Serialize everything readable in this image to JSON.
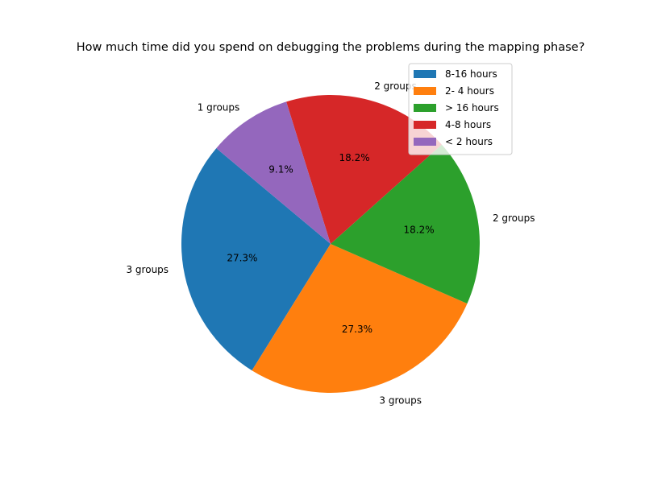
{
  "chart_data": {
    "type": "pie",
    "title": "How much time did you spend on debugging the problems during the mapping phase?",
    "slices": [
      {
        "legend": "8-16 hours",
        "label": "3 groups",
        "value": 3,
        "pct": "27.3%",
        "color": "#1f77b4"
      },
      {
        "legend": "2- 4 hours",
        "label": "3 groups",
        "value": 3,
        "pct": "27.3%",
        "color": "#ff7f0e"
      },
      {
        "legend": "> 16 hours",
        "label": "2 groups",
        "value": 2,
        "pct": "18.2%",
        "color": "#2ca02c"
      },
      {
        "legend": "4-8 hours",
        "label": "2 groups",
        "value": 2,
        "pct": "18.2%",
        "color": "#d62728"
      },
      {
        "legend": "< 2 hours",
        "label": "1 groups",
        "value": 1,
        "pct": "9.1%",
        "color": "#9467bd"
      }
    ],
    "start_angle_deg": 140,
    "direction": "counterclockwise",
    "legend_position": "upper right"
  }
}
